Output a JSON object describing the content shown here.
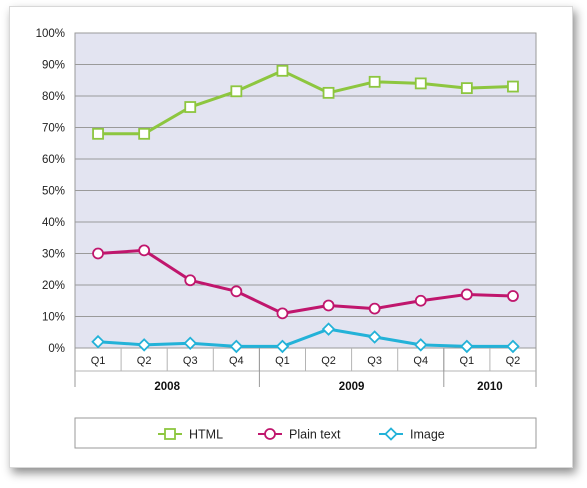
{
  "chart_data": {
    "type": "line",
    "categories": [
      "Q1",
      "Q2",
      "Q3",
      "Q4",
      "Q1",
      "Q2",
      "Q3",
      "Q4",
      "Q1",
      "Q2"
    ],
    "groups": [
      {
        "label": "2008",
        "count": 4
      },
      {
        "label": "2009",
        "count": 4
      },
      {
        "label": "2010",
        "count": 2
      }
    ],
    "y_ticks": [
      "0%",
      "10%",
      "20%",
      "30%",
      "40%",
      "50%",
      "60%",
      "70%",
      "80%",
      "90%",
      "100%"
    ],
    "ylim": [
      0,
      100
    ],
    "grid": true,
    "legend_position": "bottom",
    "series": [
      {
        "name": "HTML",
        "color": "#8dc63f",
        "marker": "square",
        "values": [
          68,
          68,
          76.5,
          81.5,
          88,
          81,
          84.5,
          84,
          82.5,
          83
        ]
      },
      {
        "name": "Plain text",
        "color": "#c0166d",
        "marker": "circle",
        "values": [
          30,
          31,
          21.5,
          18,
          11,
          13.5,
          12.5,
          15,
          17,
          16.5
        ]
      },
      {
        "name": "Image",
        "color": "#23b2d8",
        "marker": "diamond",
        "values": [
          2,
          1,
          1.5,
          0.5,
          0.5,
          6,
          3.5,
          1,
          0.5,
          0.5
        ]
      }
    ]
  }
}
